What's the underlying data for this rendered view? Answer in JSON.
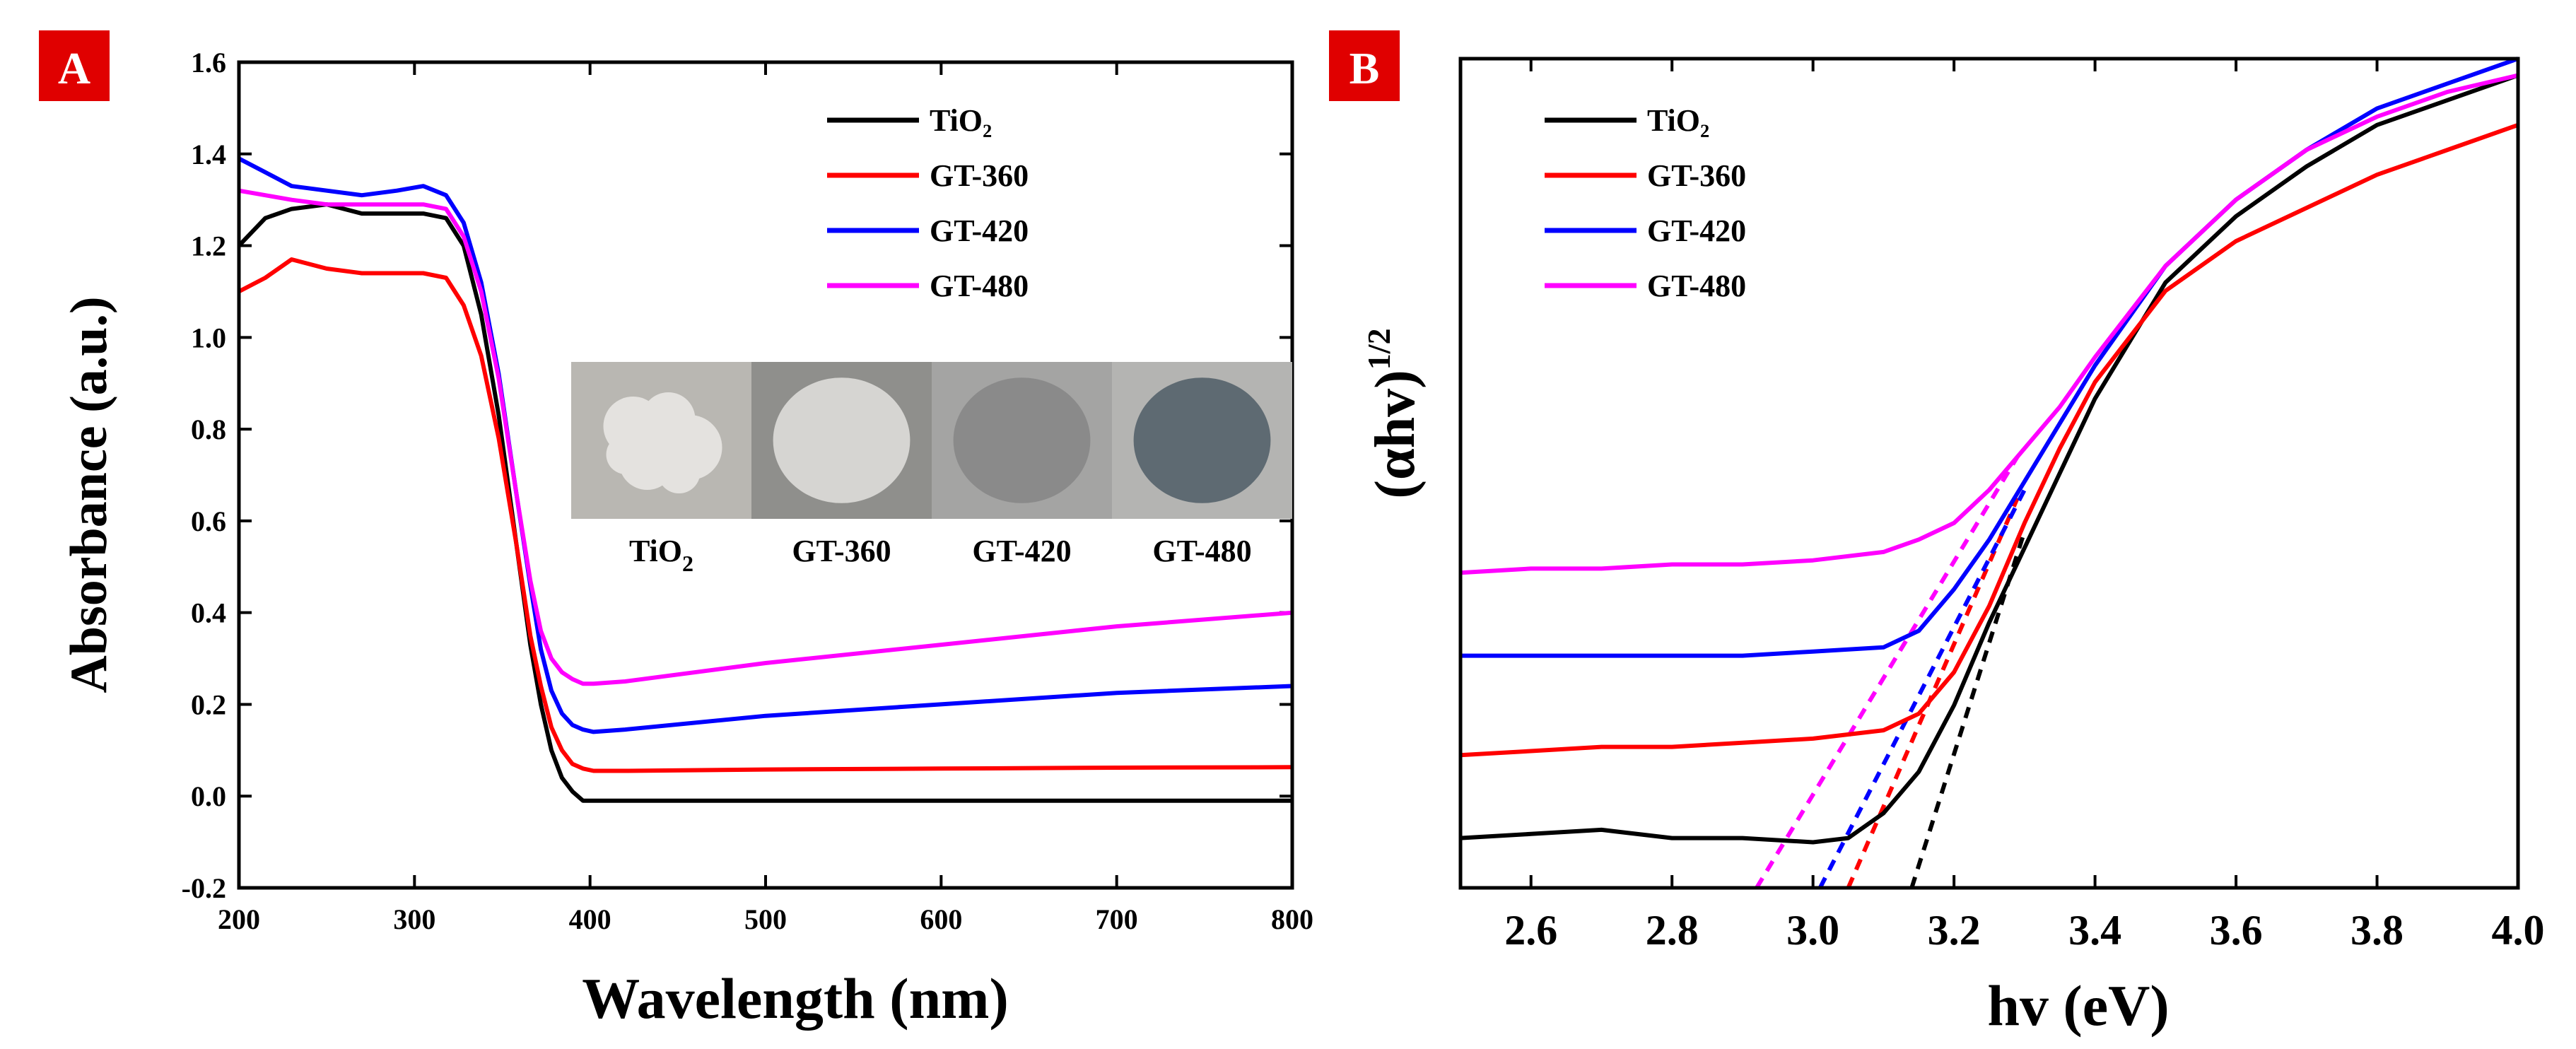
{
  "colors": {
    "TiO2": "#000000",
    "GT-360": "#ff0000",
    "GT-420": "#0000ff",
    "GT-480": "#ff00ff",
    "panel_label_bg": "#e00000",
    "panel_label_text": "#ffffff"
  },
  "chart_data": [
    {
      "panel": "A",
      "type": "line",
      "title": "",
      "xlabel": "Wavelength (nm)",
      "ylabel": "Absorbance (a.u.)",
      "xlim": [
        200,
        800
      ],
      "ylim": [
        -0.2,
        1.6
      ],
      "xticks": [
        200,
        300,
        400,
        500,
        600,
        700,
        800
      ],
      "yticks": [
        -0.2,
        0.0,
        0.2,
        0.4,
        0.6,
        0.8,
        1.0,
        1.2,
        1.4,
        1.6
      ],
      "xtick_labels": [
        "200",
        "300",
        "400",
        "500",
        "600",
        "700",
        "800"
      ],
      "ytick_labels": [
        "-0.2",
        "0.0",
        "0.2",
        "0.4",
        "0.6",
        "0.8",
        "1.0",
        "1.2",
        "1.4",
        "1.6"
      ],
      "legend": {
        "position": "top-right",
        "entries": [
          {
            "label": "TiO₂",
            "series": "TiO2"
          },
          {
            "label": "GT-360",
            "series": "GT-360"
          },
          {
            "label": "GT-420",
            "series": "GT-420"
          },
          {
            "label": "GT-480",
            "series": "GT-480"
          }
        ]
      },
      "inset": {
        "description": "photos of powder samples",
        "samples": [
          {
            "label": "TiO",
            "sub": "2",
            "powder_color": "#e4e2df",
            "bg_color": "#b9b7b2"
          },
          {
            "label": "GT-360",
            "sub": "",
            "powder_color": "#d6d5d2",
            "bg_color": "#8f8f8c"
          },
          {
            "label": "GT-420",
            "sub": "",
            "powder_color": "#8a8a8a",
            "bg_color": "#a4a4a3"
          },
          {
            "label": "GT-480",
            "sub": "",
            "powder_color": "#5e6a72",
            "bg_color": "#b4b4b2"
          }
        ]
      },
      "series": [
        {
          "name": "TiO2",
          "x": [
            200,
            215,
            230,
            250,
            270,
            290,
            305,
            318,
            328,
            338,
            348,
            358,
            366,
            372,
            378,
            384,
            390,
            396,
            402,
            410,
            440,
            500,
            600,
            700,
            800
          ],
          "y": [
            1.2,
            1.26,
            1.28,
            1.29,
            1.27,
            1.27,
            1.27,
            1.26,
            1.2,
            1.05,
            0.83,
            0.55,
            0.33,
            0.2,
            0.1,
            0.04,
            0.01,
            -0.01,
            -0.01,
            -0.01,
            -0.01,
            -0.01,
            -0.01,
            -0.01,
            -0.01
          ]
        },
        {
          "name": "GT-360",
          "x": [
            200,
            215,
            230,
            250,
            270,
            290,
            305,
            318,
            328,
            338,
            348,
            358,
            366,
            372,
            378,
            384,
            390,
            396,
            402,
            420,
            500,
            600,
            700,
            800
          ],
          "y": [
            1.1,
            1.13,
            1.17,
            1.15,
            1.14,
            1.14,
            1.14,
            1.13,
            1.07,
            0.96,
            0.78,
            0.55,
            0.35,
            0.24,
            0.15,
            0.1,
            0.07,
            0.06,
            0.055,
            0.055,
            0.058,
            0.06,
            0.062,
            0.063
          ]
        },
        {
          "name": "GT-420",
          "x": [
            200,
            215,
            230,
            250,
            270,
            290,
            305,
            318,
            328,
            338,
            348,
            358,
            366,
            372,
            378,
            384,
            390,
            396,
            402,
            420,
            500,
            600,
            700,
            800
          ],
          "y": [
            1.39,
            1.36,
            1.33,
            1.32,
            1.31,
            1.32,
            1.33,
            1.31,
            1.25,
            1.12,
            0.92,
            0.66,
            0.46,
            0.32,
            0.23,
            0.18,
            0.155,
            0.145,
            0.14,
            0.145,
            0.175,
            0.2,
            0.225,
            0.24
          ]
        },
        {
          "name": "GT-480",
          "x": [
            200,
            215,
            230,
            250,
            270,
            290,
            305,
            318,
            328,
            338,
            348,
            358,
            366,
            372,
            378,
            384,
            390,
            396,
            402,
            420,
            500,
            600,
            700,
            800
          ],
          "y": [
            1.32,
            1.31,
            1.3,
            1.29,
            1.29,
            1.29,
            1.29,
            1.28,
            1.22,
            1.1,
            0.91,
            0.66,
            0.47,
            0.36,
            0.3,
            0.27,
            0.255,
            0.245,
            0.245,
            0.25,
            0.29,
            0.33,
            0.37,
            0.4
          ]
        }
      ]
    },
    {
      "panel": "B",
      "type": "line",
      "title": "",
      "xlabel": "hv (eV)",
      "ylabel": "(αhv)",
      "ylabel_sup": "1/2",
      "xlim": [
        2.5,
        4.0
      ],
      "ylim": [
        0,
        1
      ],
      "xticks": [
        2.6,
        2.8,
        3.0,
        3.2,
        3.4,
        3.6,
        3.8,
        4.0
      ],
      "xtick_labels": [
        "2.6",
        "2.8",
        "3.0",
        "3.2",
        "3.4",
        "3.6",
        "3.8",
        "4.0"
      ],
      "yticks": [],
      "legend": {
        "position": "top-left",
        "entries": [
          {
            "label": "TiO₂",
            "series": "TiO2"
          },
          {
            "label": "GT-360",
            "series": "GT-360"
          },
          {
            "label": "GT-420",
            "series": "GT-420"
          },
          {
            "label": "GT-480",
            "series": "GT-480"
          }
        ]
      },
      "series": [
        {
          "name": "TiO2",
          "x": [
            2.5,
            2.6,
            2.7,
            2.8,
            2.9,
            3.0,
            3.05,
            3.1,
            3.15,
            3.2,
            3.25,
            3.3,
            3.35,
            3.4,
            3.5,
            3.6,
            3.7,
            3.8,
            3.9,
            4.0
          ],
          "y": [
            0.06,
            0.065,
            0.07,
            0.06,
            0.06,
            0.055,
            0.06,
            0.09,
            0.14,
            0.22,
            0.32,
            0.41,
            0.5,
            0.59,
            0.73,
            0.81,
            0.87,
            0.92,
            0.95,
            0.98
          ]
        },
        {
          "name": "GT-360",
          "x": [
            2.5,
            2.6,
            2.7,
            2.8,
            2.9,
            3.0,
            3.1,
            3.15,
            3.2,
            3.25,
            3.3,
            3.35,
            3.4,
            3.5,
            3.6,
            3.7,
            3.8,
            3.9,
            4.0
          ],
          "y": [
            0.16,
            0.165,
            0.17,
            0.17,
            0.175,
            0.18,
            0.19,
            0.21,
            0.26,
            0.34,
            0.44,
            0.53,
            0.61,
            0.72,
            0.78,
            0.82,
            0.86,
            0.89,
            0.92
          ]
        },
        {
          "name": "GT-420",
          "x": [
            2.5,
            2.6,
            2.7,
            2.8,
            2.9,
            3.0,
            3.1,
            3.15,
            3.2,
            3.25,
            3.3,
            3.35,
            3.4,
            3.5,
            3.6,
            3.7,
            3.8,
            3.9,
            4.0
          ],
          "y": [
            0.28,
            0.28,
            0.28,
            0.28,
            0.28,
            0.285,
            0.29,
            0.31,
            0.36,
            0.42,
            0.49,
            0.56,
            0.63,
            0.75,
            0.83,
            0.89,
            0.94,
            0.97,
            1.0
          ]
        },
        {
          "name": "GT-480",
          "x": [
            2.5,
            2.6,
            2.7,
            2.8,
            2.9,
            3.0,
            3.1,
            3.15,
            3.2,
            3.25,
            3.3,
            3.35,
            3.4,
            3.5,
            3.6,
            3.7,
            3.8,
            3.9,
            4.0
          ],
          "y": [
            0.38,
            0.385,
            0.385,
            0.39,
            0.39,
            0.395,
            0.405,
            0.42,
            0.44,
            0.48,
            0.53,
            0.58,
            0.64,
            0.75,
            0.83,
            0.89,
            0.93,
            0.96,
            0.98
          ]
        }
      ],
      "tauc_fits": [
        {
          "series": "TiO2",
          "x": [
            3.14,
            3.3
          ],
          "y": [
            0.0,
            0.43
          ]
        },
        {
          "series": "GT-360",
          "x": [
            3.05,
            3.29
          ],
          "y": [
            0.0,
            0.47
          ]
        },
        {
          "series": "GT-420",
          "x": [
            3.01,
            3.3
          ],
          "y": [
            0.0,
            0.48
          ]
        },
        {
          "series": "GT-480",
          "x": [
            2.92,
            3.29
          ],
          "y": [
            0.0,
            0.52
          ]
        }
      ]
    }
  ],
  "panels": {
    "A": {
      "label": "A"
    },
    "B": {
      "label": "B"
    }
  }
}
